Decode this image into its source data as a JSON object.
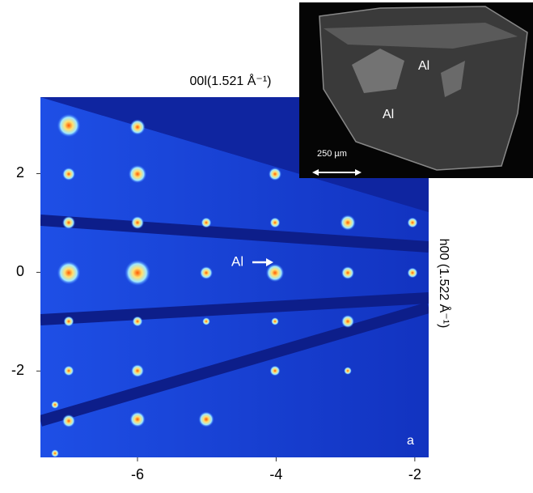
{
  "chart_data": {
    "type": "image",
    "x_label": "00l(1.521 Å⁻¹)",
    "y_label": "h00 (1.522 Å⁻¹)",
    "xlim": [
      -7.4,
      -1.8
    ],
    "ylim": [
      -3.75,
      3.55
    ],
    "xticks": [
      -6,
      -4,
      -2
    ],
    "yticks": [
      2,
      0,
      -2
    ],
    "annotations": {
      "spot": "Al",
      "panel": "a"
    },
    "inset": {
      "labels": [
        "Al",
        "Al"
      ],
      "scale_bar": "250 µm"
    }
  }
}
